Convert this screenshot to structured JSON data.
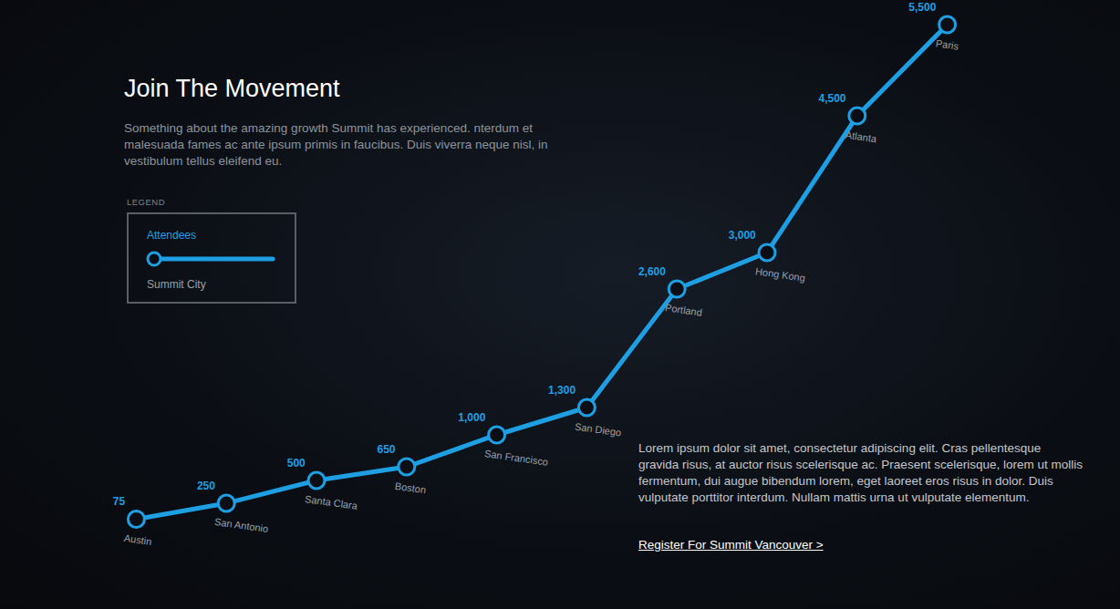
{
  "chart_data": {
    "type": "line",
    "title": "Join The Movement",
    "subtitle": "Something about the amazing growth Summit has experienced. nterdum et malesuada fames ac ante ipsum primis in faucibus. Duis viverra neque nisl, in vestibulum tellus eleifend eu.",
    "legend_heading": "LEGEND",
    "x_label": "Summit City",
    "categories": [
      "Austin",
      "San Antonio",
      "Santa Clara",
      "Boston",
      "San Francisco",
      "San Diego",
      "Portland",
      "Hong Kong",
      "Atlanta",
      "Paris"
    ],
    "series": [
      {
        "name": "Attendees",
        "color": "#1e9fe3",
        "values": [
          75,
          250,
          500,
          650,
          1000,
          1300,
          2600,
          3000,
          4500,
          5500
        ],
        "value_labels": [
          "75",
          "250",
          "500",
          "650",
          "1,000",
          "1,300",
          "2,600",
          "3,000",
          "4,500",
          "5,500"
        ]
      }
    ],
    "ylim": [
      0,
      5500
    ],
    "grid": false,
    "data_labels": true,
    "tick_labels": false,
    "marker": "circle-open",
    "line_style": "solid"
  },
  "page": {
    "paragraph": "Lorem ipsum dolor sit amet, consectetur adipiscing elit. Cras pellentesque gravida risus, at auctor risus scelerisque ac. Praesent scelerisque, lorem ut mollis fermentum, dui augue bibendum lorem, eget laoreet eros risus in dolor. Duis vulputate porttitor interdum. Nullam mattis urna ut vulputate elementum.",
    "link": "Register For Summit Vancouver >"
  }
}
